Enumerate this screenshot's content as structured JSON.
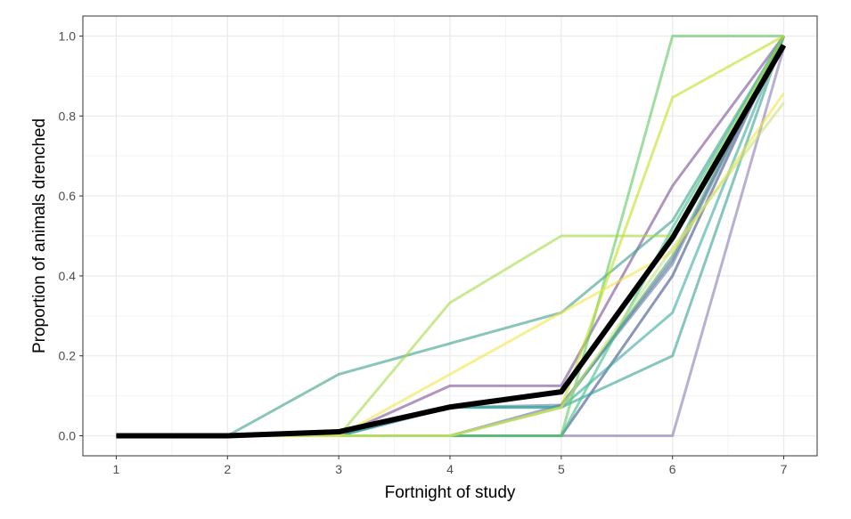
{
  "chart_data": {
    "type": "line",
    "title": "",
    "xlabel": "Fortnight of study",
    "ylabel": "Proportion of animals drenched",
    "x": [
      1,
      2,
      3,
      4,
      5,
      6,
      7
    ],
    "xlim": [
      0.7,
      7.3
    ],
    "ylim": [
      -0.05,
      1.05
    ],
    "xticks": [
      "1",
      "2",
      "3",
      "4",
      "5",
      "6",
      "7"
    ],
    "yticks": [
      "0.0",
      "0.2",
      "0.4",
      "0.6",
      "0.8",
      "1.0"
    ],
    "grid": true,
    "legend": "none",
    "series": [
      {
        "color": "#3b528b",
        "values": [
          0,
          0,
          0,
          0,
          0,
          0.4,
          1
        ]
      },
      {
        "color": "#5c7fa0",
        "values": [
          0,
          0,
          0,
          0.071,
          0.077,
          0.43,
          1
        ]
      },
      {
        "color": "#6d6aa8",
        "values": [
          0,
          0,
          0,
          0,
          0.077,
          0.44,
          1
        ]
      },
      {
        "color": "#8a7ab5",
        "values": [
          0,
          0,
          0,
          0,
          0,
          0,
          0.97
        ]
      },
      {
        "color": "#7b4f95",
        "values": [
          0,
          0,
          0,
          0.125,
          0.125,
          0.625,
          1
        ]
      },
      {
        "color": "#35a08f",
        "values": [
          0,
          0,
          0,
          0.071,
          0.071,
          0.2,
          1
        ]
      },
      {
        "color": "#3aa8a0",
        "values": [
          0,
          0,
          0,
          0.071,
          0.071,
          0.308,
          1
        ]
      },
      {
        "color": "#3aa08a",
        "values": [
          0,
          0,
          0.154,
          0.231,
          0.308,
          0.538,
          1
        ]
      },
      {
        "color": "#3fbc8a",
        "values": [
          0,
          0,
          0,
          0,
          0,
          0.52,
          1
        ]
      },
      {
        "color": "#4cae80",
        "values": [
          0,
          0,
          0,
          0,
          0.071,
          0.45,
          1
        ]
      },
      {
        "color": "#5ec962",
        "values": [
          0,
          0,
          0,
          0,
          0,
          1,
          1
        ]
      },
      {
        "color": "#a8d84a",
        "values": [
          0,
          0,
          0,
          0.333,
          0.5,
          0.5,
          1
        ]
      },
      {
        "color": "#c2df23",
        "values": [
          0,
          0,
          0,
          0,
          0.071,
          0.846,
          1
        ]
      },
      {
        "color": "#f2e54a",
        "values": [
          0,
          0,
          0,
          0.154,
          0.308,
          0.46,
          0.857
        ]
      },
      {
        "color": "#c8e27a",
        "values": [
          0,
          0,
          0,
          0,
          0.071,
          0.47,
          0.833
        ]
      },
      {
        "color": "#000000",
        "values": [
          0,
          0,
          0.01,
          0.072,
          0.11,
          0.495,
          0.977
        ],
        "bold": true
      }
    ]
  }
}
